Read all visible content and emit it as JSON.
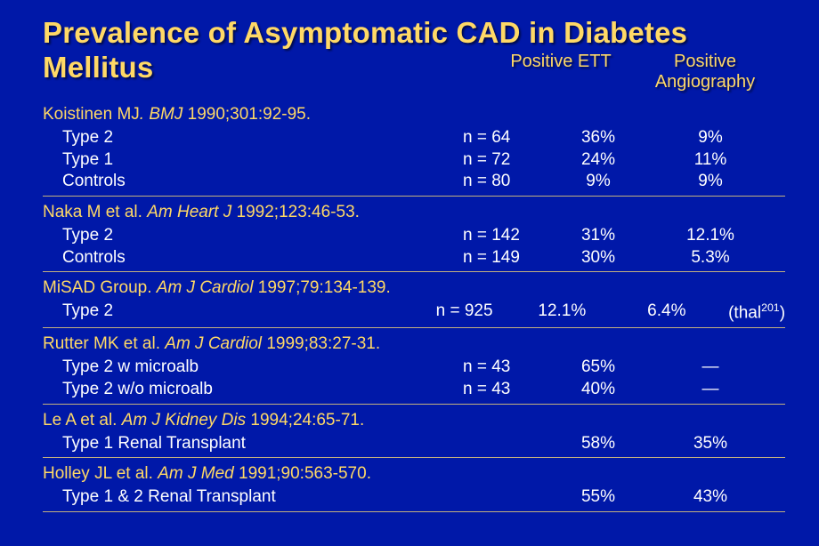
{
  "title": "Prevalence of Asymptomatic CAD in Diabetes Mellitus",
  "headers": {
    "ett": "Positive ETT",
    "angiography": "Positive Angiography"
  },
  "studies": [
    {
      "citation_pre": "Koistinen MJ",
      "citation_ital": ". BMJ ",
      "citation_post": "1990;301:92-95.",
      "rows": [
        {
          "label": "Type 2",
          "n": "n = 64",
          "ett": "36%",
          "ang": "9%",
          "note": ""
        },
        {
          "label": "Type 1",
          "n": "n = 72",
          "ett": "24%",
          "ang": "11%",
          "note": ""
        },
        {
          "label": "Controls",
          "n": "n = 80",
          "ett": "9%",
          "ang": "9%",
          "note": ""
        }
      ]
    },
    {
      "citation_pre": "Naka M et al. ",
      "citation_ital": "Am Heart J ",
      "citation_post": "1992;123:46-53.",
      "rows": [
        {
          "label": "Type 2",
          "n": "n = 142",
          "ett": "31%",
          "ang": "12.1%",
          "note": ""
        },
        {
          "label": "Controls",
          "n": "n = 149",
          "ett": "30%",
          "ang": "5.3%",
          "note": ""
        }
      ]
    },
    {
      "citation_pre": "MiSAD Group. ",
      "citation_ital": "Am J Cardiol ",
      "citation_post": "1997;79:134-139.",
      "rows": [
        {
          "label": "Type 2",
          "n": "n = 925",
          "ett": "12.1%",
          "ang": "6.4%",
          "note_html": "(thal<sup>201</sup>)"
        }
      ]
    },
    {
      "citation_pre": "Rutter MK et al. ",
      "citation_ital": "Am J Cardiol ",
      "citation_post": "1999;83:27-31.",
      "rows": [
        {
          "label": "Type 2 w microalb",
          "n": "n = 43",
          "ett": "65%",
          "ang": "—",
          "note": ""
        },
        {
          "label": "Type 2 w/o microalb",
          "n": "n = 43",
          "ett": "40%",
          "ang": "—",
          "note": ""
        }
      ]
    },
    {
      "citation_pre": "Le A et al. ",
      "citation_ital": "Am J Kidney Dis ",
      "citation_post": "1994;24:65-71.",
      "rows": [
        {
          "label": "Type 1  Renal Transplant",
          "n": "",
          "ett": "58%",
          "ang": "35%",
          "note": ""
        }
      ]
    },
    {
      "citation_pre": "Holley JL et al. ",
      "citation_ital": "Am J Med ",
      "citation_post": "1991;90:563-570.",
      "rows": [
        {
          "label": "Type 1 & 2  Renal Transplant",
          "n": "",
          "ett": "55%",
          "ang": "43%",
          "note": ""
        }
      ]
    }
  ]
}
